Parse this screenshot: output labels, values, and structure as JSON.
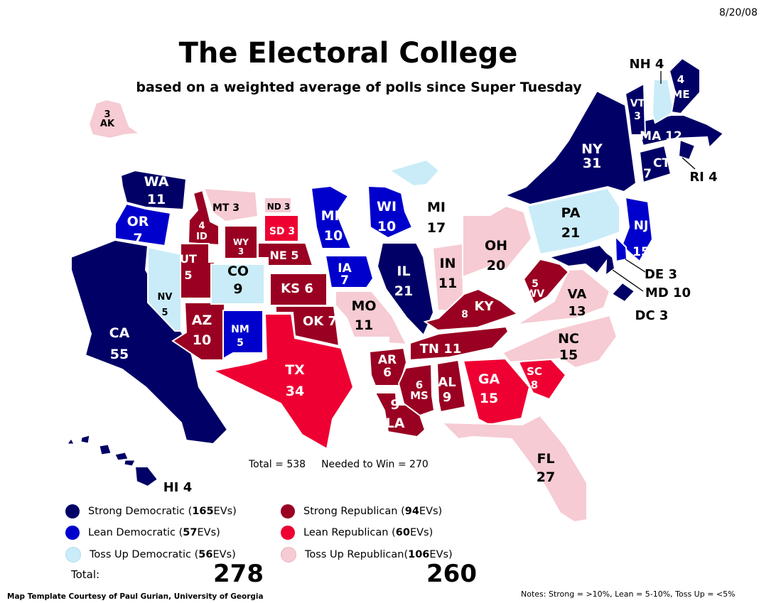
{
  "date": "8/20/08",
  "title": "The Electoral College",
  "subtitle": "based on a weighted average of polls since Super Tuesday",
  "colors": {
    "strong_dem": "#000066",
    "lean_dem": "#0000cc",
    "tossup_dem": "#c9ecf8",
    "strong_rep": "#990022",
    "lean_rep": "#ee0033",
    "tossup_rep": "#f6cbd3"
  },
  "states": [
    {
      "abbr": "WA",
      "ev": "11",
      "cat": "strong_dem"
    },
    {
      "abbr": "OR",
      "ev": "7",
      "cat": "lean_dem"
    },
    {
      "abbr": "CA",
      "ev": "55",
      "cat": "strong_dem"
    },
    {
      "abbr": "NV",
      "ev": "5",
      "cat": "tossup_dem"
    },
    {
      "abbr": "ID",
      "ev": "4",
      "cat": "strong_rep"
    },
    {
      "abbr": "MT",
      "ev": "3",
      "cat": "tossup_rep"
    },
    {
      "abbr": "WY",
      "ev": "3",
      "cat": "strong_rep"
    },
    {
      "abbr": "UT",
      "ev": "5",
      "cat": "strong_rep"
    },
    {
      "abbr": "AZ",
      "ev": "10",
      "cat": "strong_rep"
    },
    {
      "abbr": "CO",
      "ev": "9",
      "cat": "tossup_dem"
    },
    {
      "abbr": "NM",
      "ev": "5",
      "cat": "lean_dem"
    },
    {
      "abbr": "ND",
      "ev": "3",
      "cat": "tossup_rep"
    },
    {
      "abbr": "SD",
      "ev": "3",
      "cat": "lean_rep"
    },
    {
      "abbr": "NE",
      "ev": "5",
      "cat": "strong_rep"
    },
    {
      "abbr": "KS",
      "ev": "6",
      "cat": "strong_rep"
    },
    {
      "abbr": "OK",
      "ev": "7",
      "cat": "strong_rep"
    },
    {
      "abbr": "TX",
      "ev": "34",
      "cat": "lean_rep"
    },
    {
      "abbr": "MN",
      "ev": "10",
      "cat": "lean_dem"
    },
    {
      "abbr": "IA",
      "ev": "7",
      "cat": "lean_dem"
    },
    {
      "abbr": "MO",
      "ev": "11",
      "cat": "tossup_rep"
    },
    {
      "abbr": "AR",
      "ev": "6",
      "cat": "strong_rep"
    },
    {
      "abbr": "LA",
      "ev": "9",
      "cat": "strong_rep"
    },
    {
      "abbr": "WI",
      "ev": "10",
      "cat": "lean_dem"
    },
    {
      "abbr": "IL",
      "ev": "21",
      "cat": "strong_dem"
    },
    {
      "abbr": "MI",
      "ev": "17",
      "cat": "tossup_dem"
    },
    {
      "abbr": "IN",
      "ev": "11",
      "cat": "tossup_rep"
    },
    {
      "abbr": "OH",
      "ev": "20",
      "cat": "tossup_rep"
    },
    {
      "abbr": "KY",
      "ev": "8",
      "cat": "strong_rep"
    },
    {
      "abbr": "TN",
      "ev": "11",
      "cat": "strong_rep"
    },
    {
      "abbr": "MS",
      "ev": "6",
      "cat": "strong_rep"
    },
    {
      "abbr": "AL",
      "ev": "9",
      "cat": "strong_rep"
    },
    {
      "abbr": "GA",
      "ev": "15",
      "cat": "lean_rep"
    },
    {
      "abbr": "FL",
      "ev": "27",
      "cat": "tossup_rep"
    },
    {
      "abbr": "SC",
      "ev": "8",
      "cat": "lean_rep"
    },
    {
      "abbr": "NC",
      "ev": "15",
      "cat": "tossup_rep"
    },
    {
      "abbr": "VA",
      "ev": "13",
      "cat": "tossup_rep"
    },
    {
      "abbr": "WV",
      "ev": "5",
      "cat": "strong_rep"
    },
    {
      "abbr": "PA",
      "ev": "21",
      "cat": "tossup_dem"
    },
    {
      "abbr": "NY",
      "ev": "31",
      "cat": "strong_dem"
    },
    {
      "abbr": "NJ",
      "ev": "15",
      "cat": "lean_dem"
    },
    {
      "abbr": "DE",
      "ev": "3",
      "cat": "lean_dem"
    },
    {
      "abbr": "MD",
      "ev": "10",
      "cat": "strong_dem"
    },
    {
      "abbr": "DC",
      "ev": "3",
      "cat": "strong_dem"
    },
    {
      "abbr": "CT",
      "ev": "7",
      "cat": "strong_dem"
    },
    {
      "abbr": "RI",
      "ev": "4",
      "cat": "strong_dem"
    },
    {
      "abbr": "MA",
      "ev": "12",
      "cat": "strong_dem"
    },
    {
      "abbr": "VT",
      "ev": "3",
      "cat": "strong_dem"
    },
    {
      "abbr": "NH",
      "ev": "4",
      "cat": "tossup_dem"
    },
    {
      "abbr": "ME",
      "ev": "4",
      "cat": "strong_dem"
    },
    {
      "abbr": "AK",
      "ev": "3",
      "cat": "tossup_rep"
    },
    {
      "abbr": "HI",
      "ev": "4",
      "cat": "strong_dem"
    }
  ],
  "totals_line": {
    "total": "Total = 538",
    "needed": "Needed to Win = 270"
  },
  "legend": [
    {
      "cat": "strong_dem",
      "prefix": "Strong Democratic (",
      "count": "165",
      "suffix": "EVs)"
    },
    {
      "cat": "lean_dem",
      "prefix": "Lean Democratic (",
      "count": "57",
      "suffix": "EVs)"
    },
    {
      "cat": "tossup_dem",
      "prefix": "Toss Up Democratic (",
      "count": "56",
      "suffix": "EVs)"
    },
    {
      "cat": "strong_rep",
      "prefix": "Strong Republican (",
      "count": "94",
      "suffix": " EVs)"
    },
    {
      "cat": "lean_rep",
      "prefix": "Lean Republican (",
      "count": "60",
      "suffix": " EVs)"
    },
    {
      "cat": "tossup_rep",
      "prefix": "Toss Up Republican(",
      "count": "106",
      "suffix": "EVs)"
    }
  ],
  "total_label": "Total:",
  "dem_total": "278",
  "rep_total": "260",
  "credit": "Map Template Courtesy of Paul Gurian, University of Georgia",
  "notes": "Notes: Strong = >10%, Lean = 5-10%, Toss Up = <5%"
}
